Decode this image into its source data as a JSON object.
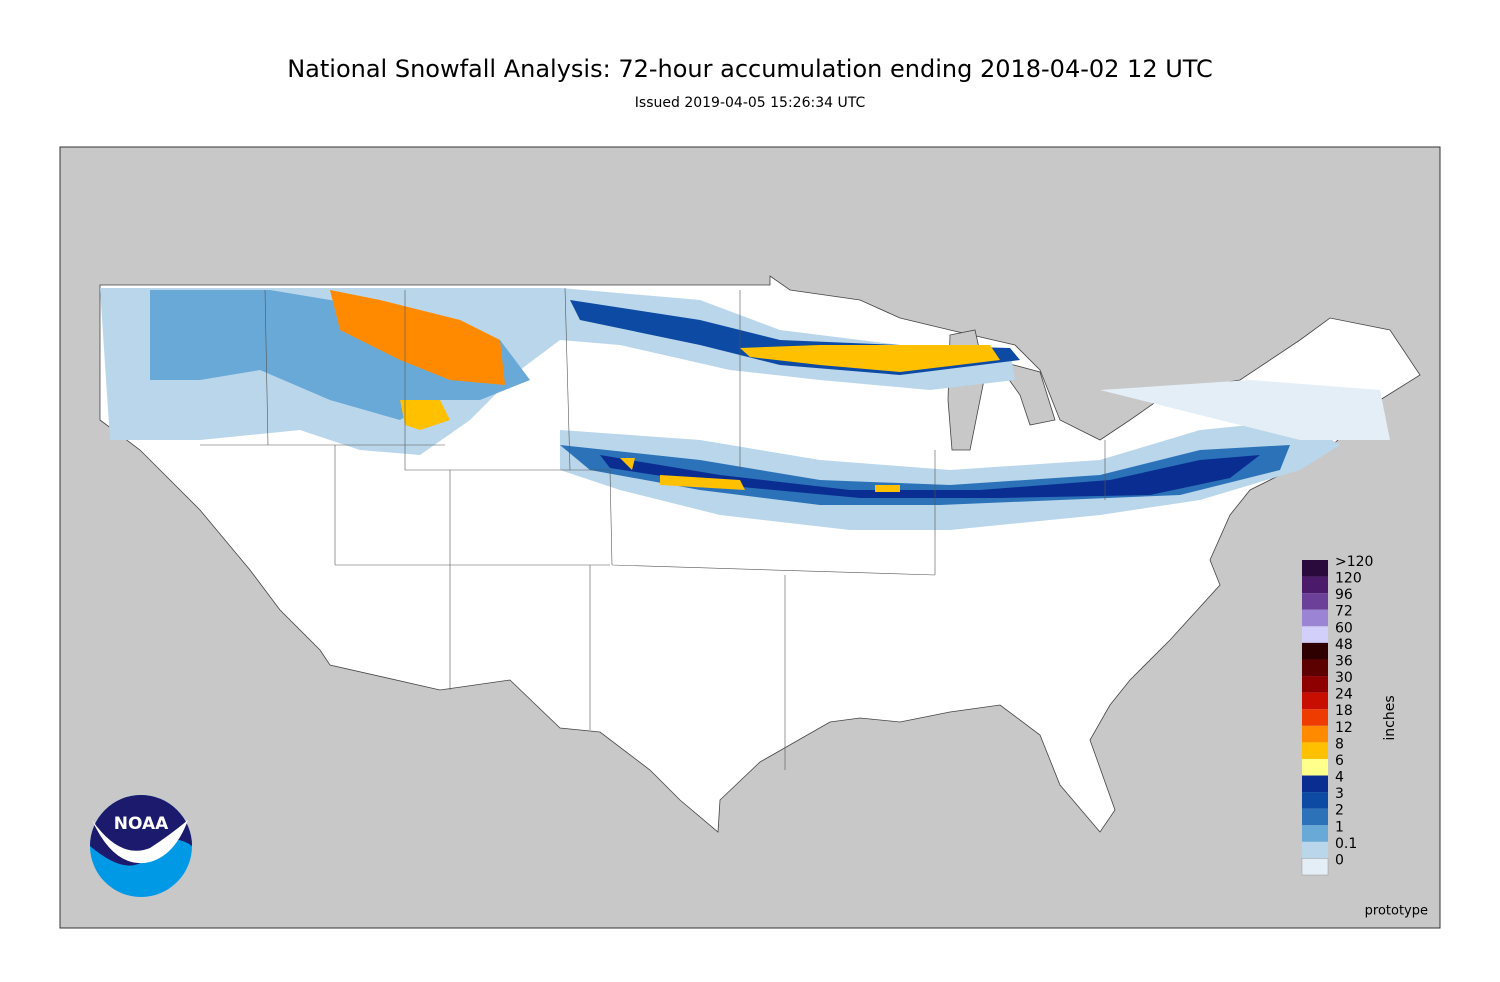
{
  "header": {
    "title": "National Snowfall Analysis: 72-hour accumulation ending 2018-04-02 12 UTC",
    "subtitle": "Issued 2019-04-05 15:26:34 UTC"
  },
  "legend": {
    "unit": "inches",
    "levels": [
      {
        "label": ">120",
        "color": "#2a0a3c"
      },
      {
        "label": "120",
        "color": "#4b1a6a"
      },
      {
        "label": "96",
        "color": "#6c3f98"
      },
      {
        "label": "72",
        "color": "#9b84d4"
      },
      {
        "label": "60",
        "color": "#d2cffa"
      },
      {
        "label": "48",
        "color": "#2e0000"
      },
      {
        "label": "36",
        "color": "#5c0000"
      },
      {
        "label": "30",
        "color": "#8e0000"
      },
      {
        "label": "24",
        "color": "#c80e00"
      },
      {
        "label": "18",
        "color": "#ee3b00"
      },
      {
        "label": "12",
        "color": "#ff8a00"
      },
      {
        "label": "8",
        "color": "#ffc000"
      },
      {
        "label": "6",
        "color": "#ffff8c"
      },
      {
        "label": "4",
        "color": "#0a2d91"
      },
      {
        "label": "3",
        "color": "#0c4aa3"
      },
      {
        "label": "2",
        "color": "#2b72b8"
      },
      {
        "label": "1",
        "color": "#68a9d7"
      },
      {
        "label": "0.1",
        "color": "#b9d6eb"
      },
      {
        "label": "0",
        "color": "#e4eef7"
      }
    ]
  },
  "note": "prototype",
  "logo": "NOAA"
}
